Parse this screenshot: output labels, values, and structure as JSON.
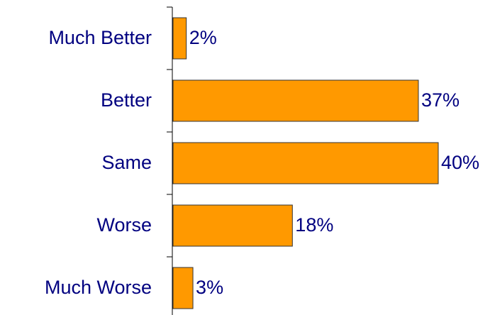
{
  "chart_data": {
    "type": "bar",
    "orientation": "horizontal",
    "categories": [
      "Much Better",
      "Better",
      "Same",
      "Worse",
      "Much Worse"
    ],
    "values": [
      2,
      37,
      40,
      18,
      3
    ],
    "value_labels": [
      "2%",
      "37%",
      "40%",
      "18%",
      "3%"
    ],
    "color": "#ff9900"
  }
}
